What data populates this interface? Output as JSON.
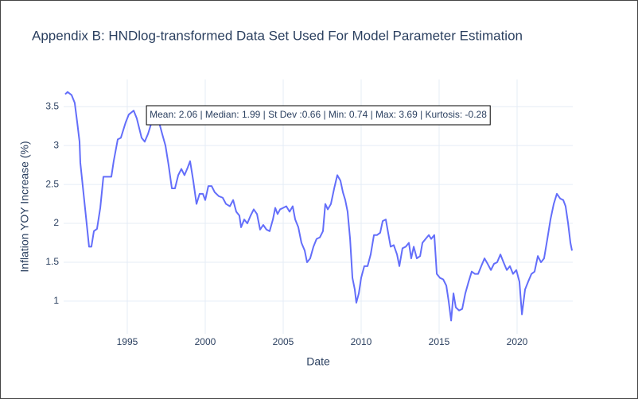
{
  "chart_data": {
    "type": "line",
    "title": "Appendix B: HNDlog-transformed Data Set Used For Model Parameter Estimation",
    "x_label": "Date",
    "y_label": "Inflation YOY Increase (%)",
    "annotation": "Mean: 2.06 | Median: 1.99 | St Dev :0.66 | Min: 0.74 | Max: 3.69 | Kurtosis: -0.28",
    "color": "#636efa",
    "grid": true,
    "xlim": [
      1990.92,
      2023.57
    ],
    "xticks": [
      1995,
      2000,
      2005,
      2010,
      2015,
      2020
    ],
    "ylim": [
      0.58,
      3.85
    ],
    "yticks": [
      1,
      1.5,
      2,
      2.5,
      3,
      3.5
    ],
    "x": [
      1991.02,
      1991.17,
      1991.43,
      1991.63,
      1991.79,
      1991.94,
      1991.99,
      1992.24,
      1992.55,
      1992.7,
      1992.86,
      1993.06,
      1993.27,
      1993.47,
      1993.72,
      1993.98,
      1994.13,
      1994.39,
      1994.59,
      1994.9,
      1995.1,
      1995.41,
      1995.61,
      1995.92,
      1996.12,
      1996.33,
      1996.53,
      1996.84,
      1997.04,
      1997.24,
      1997.45,
      1997.65,
      1997.86,
      1998.06,
      1998.27,
      1998.47,
      1998.67,
      1998.88,
      1999.03,
      1999.23,
      1999.44,
      1999.64,
      1999.85,
      2000.0,
      2000.2,
      2000.41,
      2000.61,
      2000.87,
      2001.12,
      2001.33,
      2001.58,
      2001.79,
      2001.99,
      2002.19,
      2002.3,
      2002.5,
      2002.7,
      2002.91,
      2003.11,
      2003.32,
      2003.52,
      2003.72,
      2003.93,
      2004.13,
      2004.34,
      2004.49,
      2004.64,
      2004.8,
      2005.0,
      2005.2,
      2005.41,
      2005.61,
      2005.77,
      2005.97,
      2006.17,
      2006.38,
      2006.53,
      2006.73,
      2006.94,
      2007.14,
      2007.35,
      2007.55,
      2007.7,
      2007.86,
      2008.06,
      2008.27,
      2008.47,
      2008.67,
      2008.83,
      2008.98,
      2009.13,
      2009.29,
      2009.44,
      2009.59,
      2009.69,
      2009.85,
      2010.0,
      2010.2,
      2010.41,
      2010.61,
      2010.82,
      2011.02,
      2011.22,
      2011.38,
      2011.58,
      2011.73,
      2011.89,
      2012.09,
      2012.3,
      2012.45,
      2012.65,
      2012.86,
      2013.06,
      2013.21,
      2013.37,
      2013.57,
      2013.78,
      2013.93,
      2014.13,
      2014.34,
      2014.49,
      2014.69,
      2014.85,
      2015.05,
      2015.26,
      2015.46,
      2015.61,
      2015.77,
      2015.92,
      2016.07,
      2016.28,
      2016.48,
      2016.68,
      2016.89,
      2017.09,
      2017.3,
      2017.5,
      2017.7,
      2017.91,
      2018.11,
      2018.32,
      2018.52,
      2018.72,
      2018.93,
      2019.13,
      2019.34,
      2019.54,
      2019.74,
      2019.95,
      2020.15,
      2020.31,
      2020.51,
      2020.71,
      2020.92,
      2021.12,
      2021.33,
      2021.53,
      2021.73,
      2021.94,
      2022.14,
      2022.35,
      2022.55,
      2022.76,
      2022.96,
      2023.11,
      2023.27,
      2023.42,
      2023.52
    ],
    "values": [
      3.66,
      3.69,
      3.65,
      3.55,
      3.3,
      3.05,
      2.78,
      2.3,
      1.7,
      1.7,
      1.9,
      1.93,
      2.2,
      2.6,
      2.6,
      2.6,
      2.8,
      3.08,
      3.1,
      3.3,
      3.4,
      3.45,
      3.35,
      3.1,
      3.05,
      3.15,
      3.28,
      3.28,
      3.3,
      3.15,
      3.0,
      2.75,
      2.45,
      2.45,
      2.62,
      2.7,
      2.62,
      2.72,
      2.8,
      2.55,
      2.25,
      2.38,
      2.38,
      2.3,
      2.48,
      2.48,
      2.4,
      2.35,
      2.33,
      2.25,
      2.22,
      2.3,
      2.15,
      2.1,
      1.95,
      2.05,
      2.0,
      2.1,
      2.18,
      2.12,
      1.92,
      1.98,
      1.92,
      1.9,
      2.05,
      2.2,
      2.12,
      2.18,
      2.2,
      2.22,
      2.15,
      2.22,
      2.05,
      1.95,
      1.75,
      1.65,
      1.5,
      1.55,
      1.7,
      1.8,
      1.82,
      1.9,
      2.25,
      2.18,
      2.25,
      2.45,
      2.62,
      2.55,
      2.4,
      2.3,
      2.15,
      1.8,
      1.3,
      1.15,
      0.98,
      1.1,
      1.3,
      1.45,
      1.45,
      1.6,
      1.85,
      1.85,
      1.88,
      2.03,
      2.05,
      1.88,
      1.7,
      1.72,
      1.6,
      1.45,
      1.68,
      1.7,
      1.75,
      1.55,
      1.7,
      1.55,
      1.58,
      1.75,
      1.8,
      1.85,
      1.8,
      1.85,
      1.35,
      1.3,
      1.28,
      1.2,
      1.0,
      0.75,
      1.1,
      0.92,
      0.88,
      0.9,
      1.1,
      1.25,
      1.38,
      1.35,
      1.35,
      1.45,
      1.55,
      1.48,
      1.4,
      1.48,
      1.5,
      1.6,
      1.5,
      1.4,
      1.45,
      1.35,
      1.4,
      1.25,
      0.83,
      1.15,
      1.25,
      1.35,
      1.38,
      1.58,
      1.5,
      1.55,
      1.8,
      2.05,
      2.25,
      2.38,
      2.32,
      2.3,
      2.22,
      2.0,
      1.75,
      1.65
    ]
  }
}
